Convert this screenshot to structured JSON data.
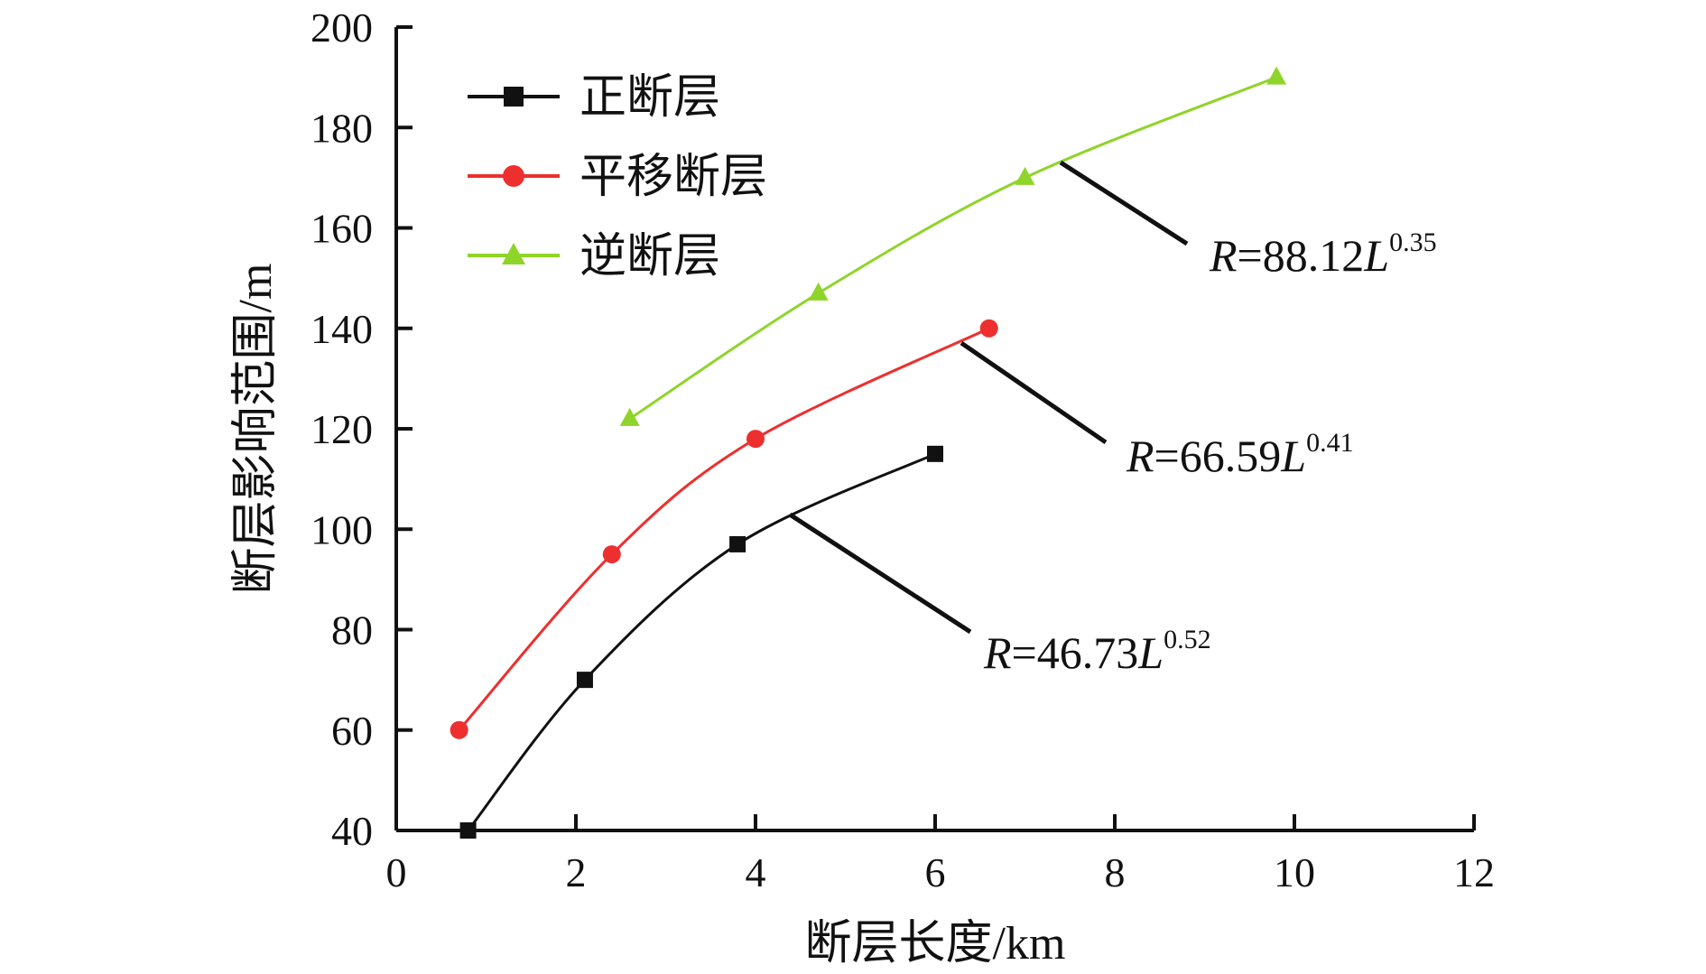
{
  "chart_data": {
    "type": "line",
    "xlabel": "断层长度/km",
    "ylabel": "断层影响范围/m",
    "xlim": [
      0,
      12
    ],
    "ylim": [
      40,
      200
    ],
    "x_ticks": [
      0,
      2,
      4,
      6,
      8,
      10,
      12
    ],
    "y_ticks": [
      40,
      60,
      80,
      100,
      120,
      140,
      160,
      180,
      200
    ],
    "grid": false,
    "legend_position": "top-left",
    "series": [
      {
        "name": "正断层",
        "color": "#111111",
        "marker": "square",
        "x": [
          0.8,
          2.1,
          3.8,
          6.0
        ],
        "y": [
          40,
          70,
          97,
          115
        ],
        "annotation": {
          "var": "R",
          "eq": "=46.73",
          "var2": "L",
          "exp": "0.52"
        }
      },
      {
        "name": "平移断层",
        "color": "#ee2f2f",
        "marker": "circle",
        "x": [
          0.7,
          2.4,
          4.0,
          6.6
        ],
        "y": [
          60,
          95,
          118,
          140
        ],
        "annotation": {
          "var": "R",
          "eq": "=66.59",
          "var2": "L",
          "exp": "0.41"
        }
      },
      {
        "name": "逆断层",
        "color": "#8fd42a",
        "marker": "triangle",
        "x": [
          2.6,
          4.7,
          7.0,
          9.8
        ],
        "y": [
          122,
          147,
          170,
          190
        ],
        "annotation": {
          "var": "R",
          "eq": "=88.12",
          "var2": "L",
          "exp": "0.35"
        }
      }
    ]
  }
}
